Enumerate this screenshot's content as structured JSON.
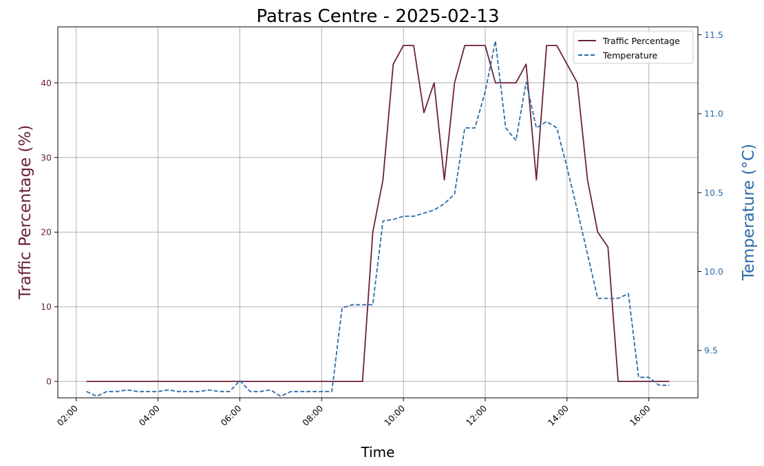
{
  "chart_data": {
    "type": "line",
    "title": "Patras Centre - 2025-02-13",
    "xlabel": "Time",
    "ylabel_left": "Traffic Percentage (%)",
    "ylabel_right": "Temperature (°C)",
    "x_ticks": [
      "02:00",
      "04:00",
      "06:00",
      "08:00",
      "10:00",
      "12:00",
      "14:00",
      "16:00"
    ],
    "xlim_hours": [
      1.55,
      17.2
    ],
    "ylim_left": [
      -2.2,
      47.5
    ],
    "yticks_left": [
      0,
      10,
      20,
      30,
      40
    ],
    "ylim_right": [
      9.2,
      11.55
    ],
    "yticks_right": [
      9.5,
      10.0,
      10.5,
      11.0,
      11.5
    ],
    "grid": true,
    "legend_position": "top-right",
    "series": [
      {
        "name": "Traffic Percentage",
        "axis": "left",
        "color": "#6b2037",
        "style": "solid",
        "x": [
          "02:15",
          "02:30",
          "02:45",
          "03:00",
          "03:15",
          "03:30",
          "03:45",
          "04:00",
          "04:15",
          "04:30",
          "04:45",
          "05:00",
          "05:15",
          "05:30",
          "05:45",
          "06:00",
          "06:15",
          "06:30",
          "06:45",
          "07:00",
          "07:15",
          "07:30",
          "07:45",
          "08:00",
          "08:15",
          "08:30",
          "08:45",
          "09:00",
          "09:15",
          "09:30",
          "09:45",
          "10:00",
          "10:15",
          "10:30",
          "10:45",
          "11:00",
          "11:15",
          "11:30",
          "11:45",
          "12:00",
          "12:15",
          "12:30",
          "12:45",
          "13:00",
          "13:15",
          "13:30",
          "13:45",
          "14:00",
          "14:15",
          "14:30",
          "14:45",
          "15:00",
          "15:15",
          "15:30",
          "15:45",
          "16:00",
          "16:15",
          "16:30"
        ],
        "values": [
          0,
          0,
          0,
          0,
          0,
          0,
          0,
          0,
          0,
          0,
          0,
          0,
          0,
          0,
          0,
          0,
          0,
          0,
          0,
          0,
          0,
          0,
          0,
          0,
          0,
          0,
          0,
          0,
          20,
          27,
          42.5,
          45,
          45,
          36,
          40,
          27,
          40,
          45,
          45,
          45,
          40,
          40,
          40,
          42.5,
          27,
          45,
          45,
          42.5,
          40,
          27,
          20,
          18,
          0,
          0,
          0,
          0,
          0,
          0
        ]
      },
      {
        "name": "Temperature",
        "axis": "right",
        "color": "#2a6aa8",
        "style": "dashed",
        "x": [
          "02:15",
          "02:30",
          "02:45",
          "03:00",
          "03:15",
          "03:30",
          "03:45",
          "04:00",
          "04:15",
          "04:30",
          "04:45",
          "05:00",
          "05:15",
          "05:30",
          "05:45",
          "06:00",
          "06:15",
          "06:30",
          "06:45",
          "07:00",
          "07:15",
          "07:30",
          "07:45",
          "08:00",
          "08:15",
          "08:30",
          "08:45",
          "09:00",
          "09:15",
          "09:30",
          "09:45",
          "10:00",
          "10:15",
          "10:30",
          "10:45",
          "11:00",
          "11:15",
          "11:30",
          "11:45",
          "12:00",
          "12:15",
          "12:30",
          "12:45",
          "13:00",
          "13:15",
          "13:30",
          "13:45",
          "14:00",
          "14:15",
          "14:30",
          "14:45",
          "15:00",
          "15:15",
          "15:30",
          "15:45",
          "16:00",
          "16:15",
          "16:30"
        ],
        "values": [
          9.24,
          9.21,
          9.24,
          9.24,
          9.25,
          9.24,
          9.24,
          9.24,
          9.25,
          9.24,
          9.24,
          9.24,
          9.25,
          9.24,
          9.24,
          9.31,
          9.24,
          9.24,
          9.25,
          9.21,
          9.24,
          9.24,
          9.24,
          9.24,
          9.24,
          9.77,
          9.79,
          9.79,
          9.79,
          10.32,
          10.33,
          10.35,
          10.35,
          10.37,
          10.39,
          10.43,
          10.49,
          10.91,
          10.91,
          11.14,
          11.46,
          10.91,
          10.83,
          11.2,
          10.91,
          10.95,
          10.91,
          10.66,
          10.39,
          10.11,
          9.83,
          9.83,
          9.83,
          9.86,
          9.33,
          9.33,
          9.28,
          9.28
        ]
      }
    ]
  }
}
